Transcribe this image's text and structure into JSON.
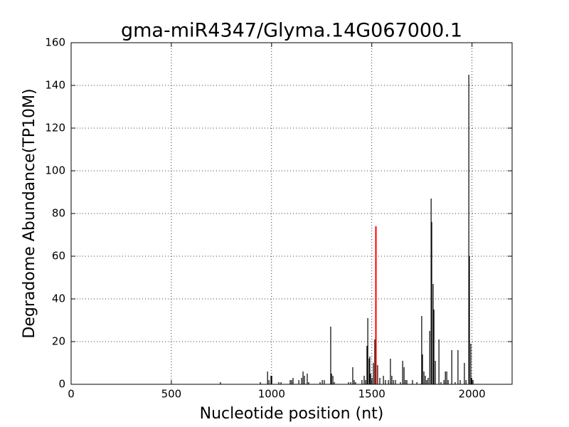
{
  "chart_data": {
    "type": "bar",
    "title": "gma-miR4347/Glyma.14G067000.1",
    "x_label": "Nucleotide position (nt)",
    "y_label": "Degradome Abundance(TP10M)",
    "xlim": [
      0,
      2200
    ],
    "xticks": [
      0,
      500,
      1000,
      1500,
      2000
    ],
    "ylim": [
      0,
      160
    ],
    "yticks": [
      0,
      20,
      40,
      60,
      80,
      100,
      120,
      140,
      160
    ],
    "grid": true,
    "series": [
      {
        "color": "#000000",
        "x": [
          745,
          944,
          980,
          987,
          997,
          1001,
          1036,
          1047,
          1093,
          1100,
          1107,
          1136,
          1150,
          1157,
          1164,
          1178,
          1185,
          1242,
          1253,
          1263,
          1295,
          1299,
          1306,
          1313,
          1384,
          1395,
          1405,
          1412,
          1419,
          1451,
          1462,
          1469,
          1476,
          1480,
          1487,
          1490,
          1494,
          1501,
          1508,
          1515,
          1529,
          1540,
          1558,
          1568,
          1583,
          1593,
          1600,
          1608,
          1618,
          1643,
          1654,
          1661,
          1668,
          1675,
          1703,
          1725,
          1749,
          1753,
          1760,
          1767,
          1774,
          1781,
          1789,
          1796,
          1799,
          1806,
          1810,
          1817,
          1835,
          1845,
          1860,
          1867,
          1874,
          1881,
          1899,
          1916,
          1930,
          1941,
          1962,
          1970,
          1984,
          1987,
          1994,
          1998,
          2005
        ],
        "values": [
          1,
          1,
          6,
          2,
          4,
          4,
          1,
          1,
          2,
          2,
          3,
          2,
          3,
          6,
          4,
          5,
          1,
          1,
          2,
          2,
          27,
          5,
          4,
          1,
          1,
          1,
          8,
          2,
          1,
          2,
          4,
          2,
          18,
          31,
          12,
          13,
          5,
          3,
          10,
          21,
          9,
          3,
          4,
          2,
          2,
          12,
          4,
          2,
          2,
          1,
          11,
          8,
          2,
          2,
          2,
          1,
          32,
          14,
          6,
          4,
          2,
          3,
          25,
          87,
          76,
          47,
          35,
          11,
          21,
          1,
          2,
          6,
          6,
          2,
          16,
          1,
          16,
          2,
          10,
          2,
          145,
          60,
          19,
          3,
          2
        ]
      },
      {
        "color": "#ff0000",
        "x": [
          1519,
          1522
        ],
        "values": [
          74,
          74
        ]
      }
    ]
  }
}
